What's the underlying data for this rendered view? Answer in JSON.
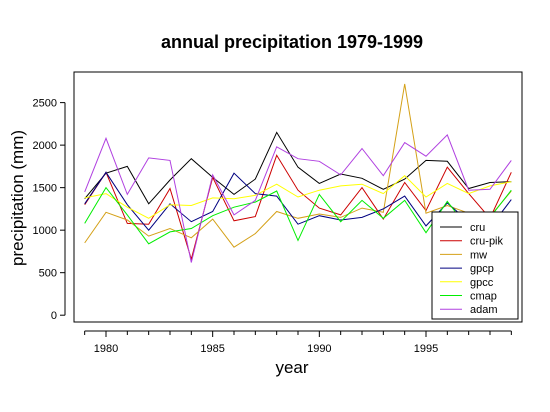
{
  "chart_data": {
    "type": "line",
    "title": "annual precipitation 1979-1999",
    "xlabel": "year",
    "ylabel": "precipitation (mm)",
    "xlim": [
      1978.5,
      1999.5
    ],
    "ylim": [
      -80,
      2860
    ],
    "x_ticks": [
      1980,
      1985,
      1990,
      1995
    ],
    "y_ticks": [
      0,
      500,
      1000,
      1500,
      2000,
      2500
    ],
    "grid": false,
    "legend": "bottom-right",
    "x": [
      1979,
      1980,
      1981,
      1982,
      1983,
      1984,
      1985,
      1986,
      1987,
      1988,
      1989,
      1990,
      1991,
      1992,
      1993,
      1994,
      1995,
      1996,
      1997,
      1998,
      1999
    ],
    "series": [
      {
        "name": "cru",
        "color": "#000000",
        "values": [
          1370,
          1670,
          1750,
          1310,
          1590,
          1840,
          1620,
          1420,
          1600,
          2150,
          1740,
          1550,
          1660,
          1610,
          1480,
          1600,
          1820,
          1810,
          1490,
          1560,
          1570
        ]
      },
      {
        "name": "cru-pik",
        "color": "#cc0000",
        "values": [
          1300,
          1680,
          1080,
          1070,
          1490,
          660,
          1620,
          1110,
          1160,
          1880,
          1470,
          1260,
          1180,
          1500,
          1130,
          1560,
          1230,
          1740,
          1430,
          1140,
          1680
        ]
      },
      {
        "name": "mw",
        "color": "#d4a017",
        "values": [
          850,
          1210,
          1120,
          930,
          1020,
          910,
          1130,
          800,
          960,
          1220,
          1140,
          1190,
          1150,
          1260,
          1210,
          2720,
          1200,
          1290,
          1200,
          1160,
          1460
        ]
      },
      {
        "name": "gpcp",
        "color": "#000080",
        "values": [
          1310,
          1680,
          1300,
          1000,
          1310,
          1100,
          1220,
          1670,
          1430,
          1400,
          1070,
          1170,
          1120,
          1150,
          1250,
          1400,
          1050,
          1320,
          1100,
          1030,
          1360
        ]
      },
      {
        "name": "gpcc",
        "color": "#ffff00",
        "values": [
          1380,
          1430,
          1270,
          1140,
          1300,
          1290,
          1380,
          1370,
          1410,
          1540,
          1390,
          1470,
          1520,
          1540,
          1430,
          1640,
          1390,
          1550,
          1430,
          1520,
          1570
        ]
      },
      {
        "name": "cmap",
        "color": "#00ee00",
        "values": [
          1080,
          1500,
          1180,
          840,
          980,
          1020,
          1170,
          1270,
          1330,
          1460,
          880,
          1420,
          1100,
          1350,
          1140,
          1350,
          970,
          1340,
          1010,
          1150,
          1470
        ]
      },
      {
        "name": "adam",
        "color": "#b040e0",
        "values": [
          1450,
          2080,
          1420,
          1850,
          1820,
          620,
          1650,
          1180,
          1350,
          1980,
          1840,
          1810,
          1650,
          1960,
          1640,
          2030,
          1870,
          2120,
          1470,
          1480,
          1820
        ]
      }
    ]
  }
}
